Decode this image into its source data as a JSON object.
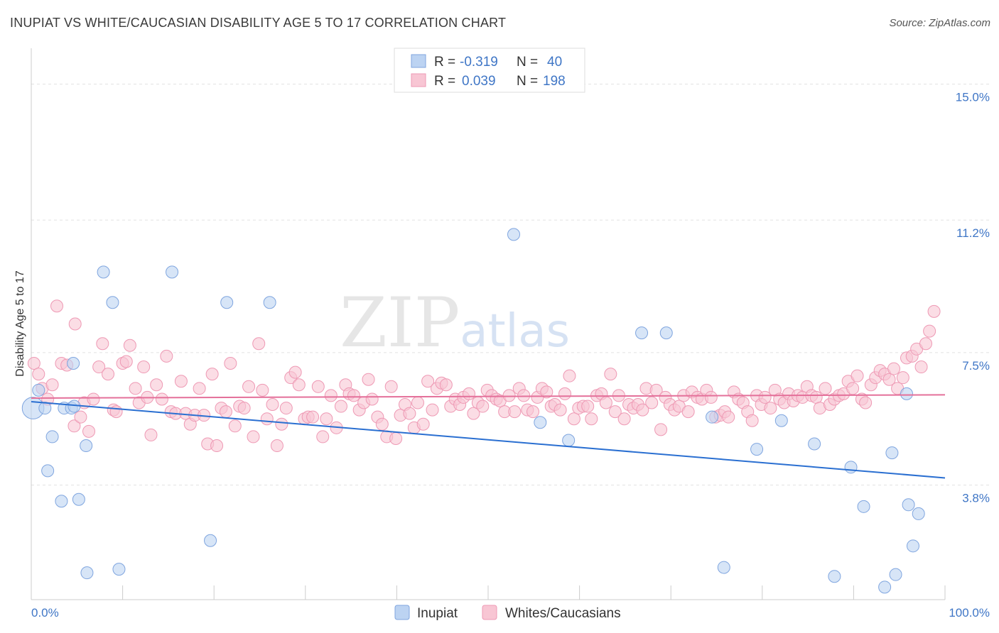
{
  "header": {
    "title": "INUPIAT VS WHITE/CAUCASIAN DISABILITY AGE 5 TO 17 CORRELATION CHART",
    "source": "Source: ZipAtlas.com"
  },
  "chart_data": {
    "type": "scatter",
    "title": "INUPIAT VS WHITE/CAUCASIAN DISABILITY AGE 5 TO 17 CORRELATION CHART",
    "xlabel": "",
    "ylabel": "Disability Age 5 to 17",
    "xlim": [
      0,
      100
    ],
    "ylim": [
      0.6,
      16.0
    ],
    "x_tick_labels": [
      "0.0%",
      "100.0%"
    ],
    "y_ticks": [
      3.8,
      7.5,
      11.2,
      15.0
    ],
    "y_tick_labels": [
      "3.8%",
      "7.5%",
      "11.2%",
      "15.0%"
    ],
    "watermark": "ZIPatlas",
    "colors": {
      "inupiat_fill": "#bcd3f2",
      "inupiat_stroke": "#7fa5df",
      "inupiat_line": "#2a6fd1",
      "white_fill": "#f8c6d4",
      "white_stroke": "#ee99b4",
      "white_line": "#e4709a",
      "accent": "#3f76c6"
    },
    "legend": {
      "rows": [
        {
          "r_label": "R =",
          "r_value": "-0.319",
          "n_label": "N =",
          "n_value": "40"
        },
        {
          "r_label": "R =",
          "r_value": "0.039",
          "n_label": "N =",
          "n_value": "198"
        }
      ]
    },
    "series": [
      {
        "name": "Inupiat",
        "trend": {
          "x0": 0,
          "y0": 6.13,
          "x1": 100,
          "y1": 4.0
        },
        "points": [
          [
            0.2,
            5.95,
            1.8
          ],
          [
            0.8,
            6.45,
            1
          ],
          [
            1.5,
            5.95,
            1
          ],
          [
            1.8,
            4.2,
            1
          ],
          [
            2.3,
            5.15,
            1
          ],
          [
            3.3,
            3.35,
            1
          ],
          [
            3.6,
            5.95,
            1
          ],
          [
            4.4,
            5.95,
            1
          ],
          [
            4.6,
            7.2,
            1
          ],
          [
            4.7,
            6.0,
            1
          ],
          [
            5.2,
            3.4,
            1
          ],
          [
            6.0,
            4.9,
            1
          ],
          [
            6.1,
            1.35,
            1
          ],
          [
            7.9,
            9.75,
            1
          ],
          [
            8.9,
            8.9,
            1
          ],
          [
            9.6,
            1.45,
            1
          ],
          [
            15.4,
            9.75,
            1
          ],
          [
            19.6,
            2.25,
            1
          ],
          [
            21.4,
            8.9,
            1
          ],
          [
            26.1,
            8.9,
            1
          ],
          [
            52.8,
            10.8,
            1
          ],
          [
            55.7,
            5.55,
            1
          ],
          [
            58.8,
            5.05,
            1
          ],
          [
            66.8,
            8.05,
            1
          ],
          [
            69.5,
            8.05,
            1
          ],
          [
            74.5,
            5.7,
            1
          ],
          [
            75.8,
            1.5,
            1
          ],
          [
            79.4,
            4.8,
            1
          ],
          [
            82.1,
            5.6,
            1
          ],
          [
            85.7,
            4.95,
            1
          ],
          [
            87.9,
            1.25,
            1
          ],
          [
            89.7,
            4.3,
            1
          ],
          [
            91.1,
            3.2,
            1
          ],
          [
            93.4,
            0.95,
            1
          ],
          [
            94.2,
            4.7,
            1
          ],
          [
            94.6,
            1.3,
            1
          ],
          [
            95.8,
            6.35,
            1
          ],
          [
            96.0,
            3.25,
            1
          ],
          [
            96.5,
            2.1,
            1
          ],
          [
            97.1,
            3.0,
            1
          ]
        ]
      },
      {
        "name": "Whites/Caucasians",
        "trend": {
          "x0": 0,
          "y0": 6.23,
          "x1": 100,
          "y1": 6.32
        },
        "points": [
          [
            0.3,
            7.2
          ],
          [
            0.8,
            6.9
          ],
          [
            1.2,
            6.5
          ],
          [
            1.8,
            6.2
          ],
          [
            2.3,
            6.6
          ],
          [
            2.8,
            8.8
          ],
          [
            3.3,
            7.2
          ],
          [
            3.9,
            7.15
          ],
          [
            4.7,
            5.45
          ],
          [
            4.8,
            8.3
          ],
          [
            5.4,
            5.7
          ],
          [
            5.8,
            6.1
          ],
          [
            6.3,
            5.3
          ],
          [
            6.8,
            6.2
          ],
          [
            7.4,
            7.1
          ],
          [
            7.8,
            7.75
          ],
          [
            8.4,
            6.9
          ],
          [
            9.0,
            5.9
          ],
          [
            9.3,
            5.85
          ],
          [
            10.0,
            7.2
          ],
          [
            10.4,
            7.25
          ],
          [
            10.8,
            7.7
          ],
          [
            11.4,
            6.5
          ],
          [
            11.8,
            6.1
          ],
          [
            12.3,
            7.1
          ],
          [
            12.7,
            6.25
          ],
          [
            13.1,
            5.2
          ],
          [
            13.7,
            6.6
          ],
          [
            14.3,
            6.2
          ],
          [
            14.8,
            7.4
          ],
          [
            15.3,
            5.85
          ],
          [
            15.8,
            5.8
          ],
          [
            16.4,
            6.7
          ],
          [
            16.9,
            5.8
          ],
          [
            17.4,
            5.5
          ],
          [
            17.9,
            5.75
          ],
          [
            18.4,
            6.5
          ],
          [
            18.9,
            5.75
          ],
          [
            19.3,
            4.95
          ],
          [
            19.8,
            6.9
          ],
          [
            20.3,
            4.9
          ],
          [
            20.8,
            5.95
          ],
          [
            21.3,
            5.85
          ],
          [
            21.8,
            7.2
          ],
          [
            22.3,
            5.45
          ],
          [
            22.8,
            6.0
          ],
          [
            23.3,
            5.95
          ],
          [
            23.8,
            6.55
          ],
          [
            24.3,
            5.15
          ],
          [
            24.9,
            7.75
          ],
          [
            25.3,
            6.45
          ],
          [
            25.8,
            5.65
          ],
          [
            26.4,
            6.05
          ],
          [
            26.9,
            4.9
          ],
          [
            27.4,
            5.5
          ],
          [
            27.9,
            5.95
          ],
          [
            28.4,
            6.8
          ],
          [
            28.9,
            6.95
          ],
          [
            29.3,
            6.6
          ],
          [
            29.9,
            5.65
          ],
          [
            30.3,
            5.7
          ],
          [
            30.8,
            5.7
          ],
          [
            31.4,
            6.55
          ],
          [
            31.9,
            5.15
          ],
          [
            32.3,
            5.65
          ],
          [
            32.8,
            6.3
          ],
          [
            33.4,
            5.4
          ],
          [
            33.9,
            6.0
          ],
          [
            34.4,
            6.6
          ],
          [
            34.8,
            6.35
          ],
          [
            35.3,
            6.3
          ],
          [
            35.9,
            5.9
          ],
          [
            36.4,
            6.1
          ],
          [
            36.9,
            6.75
          ],
          [
            37.3,
            6.2
          ],
          [
            37.9,
            5.7
          ],
          [
            38.4,
            5.5
          ],
          [
            38.9,
            5.15
          ],
          [
            39.4,
            6.55
          ],
          [
            39.9,
            5.1
          ],
          [
            40.4,
            5.75
          ],
          [
            40.9,
            6.05
          ],
          [
            41.4,
            5.8
          ],
          [
            41.9,
            5.4
          ],
          [
            42.3,
            6.1
          ],
          [
            42.9,
            5.5
          ],
          [
            43.4,
            6.7
          ],
          [
            43.9,
            5.9
          ],
          [
            44.4,
            6.5
          ],
          [
            44.9,
            6.65
          ],
          [
            45.4,
            6.6
          ],
          [
            45.9,
            6.0
          ],
          [
            46.4,
            6.2
          ],
          [
            46.9,
            6.05
          ],
          [
            47.3,
            6.25
          ],
          [
            47.9,
            6.35
          ],
          [
            48.4,
            5.8
          ],
          [
            48.9,
            6.1
          ],
          [
            49.4,
            6.0
          ],
          [
            49.9,
            6.45
          ],
          [
            50.4,
            6.3
          ],
          [
            50.9,
            6.2
          ],
          [
            51.3,
            6.15
          ],
          [
            51.8,
            5.85
          ],
          [
            52.3,
            6.3
          ],
          [
            52.9,
            5.85
          ],
          [
            53.4,
            6.5
          ],
          [
            53.9,
            6.3
          ],
          [
            54.3,
            5.9
          ],
          [
            54.9,
            5.85
          ],
          [
            55.4,
            6.25
          ],
          [
            55.9,
            6.5
          ],
          [
            56.4,
            6.4
          ],
          [
            56.9,
            6.0
          ],
          [
            57.3,
            6.05
          ],
          [
            57.9,
            5.9
          ],
          [
            58.4,
            6.35
          ],
          [
            58.9,
            6.85
          ],
          [
            59.4,
            5.65
          ],
          [
            59.9,
            5.95
          ],
          [
            60.4,
            6.0
          ],
          [
            60.9,
            6.0
          ],
          [
            61.3,
            5.65
          ],
          [
            61.9,
            6.3
          ],
          [
            62.4,
            6.35
          ],
          [
            62.9,
            6.1
          ],
          [
            63.4,
            6.9
          ],
          [
            63.9,
            5.85
          ],
          [
            64.3,
            6.3
          ],
          [
            64.9,
            5.65
          ],
          [
            65.4,
            6.05
          ],
          [
            65.9,
            5.95
          ],
          [
            66.4,
            6.05
          ],
          [
            66.9,
            5.9
          ],
          [
            67.3,
            6.5
          ],
          [
            67.9,
            6.1
          ],
          [
            68.4,
            6.45
          ],
          [
            68.9,
            5.35
          ],
          [
            69.4,
            6.25
          ],
          [
            69.9,
            6.05
          ],
          [
            70.4,
            5.9
          ],
          [
            70.9,
            6.0
          ],
          [
            71.4,
            6.3
          ],
          [
            71.9,
            5.85
          ],
          [
            72.3,
            6.4
          ],
          [
            72.9,
            6.25
          ],
          [
            73.4,
            6.2
          ],
          [
            73.9,
            6.45
          ],
          [
            74.4,
            6.25
          ],
          [
            74.9,
            5.7
          ],
          [
            75.4,
            5.75
          ],
          [
            75.9,
            5.85
          ],
          [
            76.3,
            5.7
          ],
          [
            76.9,
            6.4
          ],
          [
            77.4,
            6.2
          ],
          [
            77.9,
            6.1
          ],
          [
            78.4,
            5.85
          ],
          [
            78.9,
            5.6
          ],
          [
            79.4,
            6.3
          ],
          [
            79.9,
            6.05
          ],
          [
            80.3,
            6.25
          ],
          [
            80.9,
            5.95
          ],
          [
            81.4,
            6.45
          ],
          [
            81.9,
            6.2
          ],
          [
            82.4,
            6.1
          ],
          [
            82.9,
            6.35
          ],
          [
            83.4,
            6.15
          ],
          [
            83.9,
            6.3
          ],
          [
            84.4,
            6.25
          ],
          [
            84.9,
            6.55
          ],
          [
            85.4,
            6.3
          ],
          [
            85.9,
            6.25
          ],
          [
            86.3,
            5.95
          ],
          [
            86.9,
            6.5
          ],
          [
            87.4,
            6.05
          ],
          [
            87.9,
            6.2
          ],
          [
            88.4,
            6.3
          ],
          [
            88.9,
            6.35
          ],
          [
            89.4,
            6.7
          ],
          [
            89.9,
            6.5
          ],
          [
            90.4,
            6.85
          ],
          [
            90.9,
            6.2
          ],
          [
            91.3,
            6.1
          ],
          [
            91.9,
            6.6
          ],
          [
            92.4,
            6.8
          ],
          [
            92.9,
            7.0
          ],
          [
            93.4,
            6.9
          ],
          [
            93.9,
            6.75
          ],
          [
            94.4,
            7.05
          ],
          [
            94.8,
            6.5
          ],
          [
            95.4,
            6.8
          ],
          [
            95.8,
            7.35
          ],
          [
            96.4,
            7.4
          ],
          [
            96.9,
            7.6
          ],
          [
            97.4,
            7.1
          ],
          [
            97.9,
            7.75
          ],
          [
            98.3,
            8.1
          ],
          [
            98.8,
            8.65
          ]
        ]
      }
    ]
  },
  "bottom_legend": {
    "items": [
      {
        "label": "Inupiat"
      },
      {
        "label": "Whites/Caucasians"
      }
    ]
  }
}
